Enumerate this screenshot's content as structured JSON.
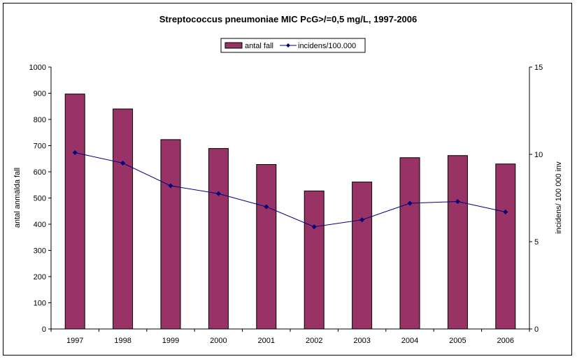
{
  "chart_data": {
    "type": "bar",
    "title": "Streptococcus pneumoniae MIC PcG>/=0,5 mg/L, 1997-2006",
    "categories": [
      "1997",
      "1998",
      "1999",
      "2000",
      "2001",
      "2002",
      "2003",
      "2004",
      "2005",
      "2006"
    ],
    "series": [
      {
        "name": "antal fall",
        "type": "bar",
        "axis": "left",
        "color": "#993366",
        "values": [
          897,
          840,
          723,
          689,
          628,
          527,
          561,
          654,
          662,
          630
        ]
      },
      {
        "name": "incidens/100.000",
        "type": "line",
        "axis": "right",
        "color": "#000080",
        "values": [
          10.1,
          9.5,
          8.2,
          7.75,
          7.0,
          5.85,
          6.25,
          7.2,
          7.3,
          6.7
        ]
      }
    ],
    "ylabel": "antal anmälda fall",
    "ylabel_right": "incidens/ 100 000 inv",
    "ylim": [
      0,
      1000
    ],
    "ylim_right": [
      0,
      15
    ],
    "yticks": [
      "0",
      "100",
      "200",
      "300",
      "400",
      "500",
      "600",
      "700",
      "800",
      "900",
      "1000"
    ],
    "yticks_right": [
      "0",
      "5",
      "10",
      "15"
    ],
    "legend_position": "top-center",
    "grid": false
  }
}
